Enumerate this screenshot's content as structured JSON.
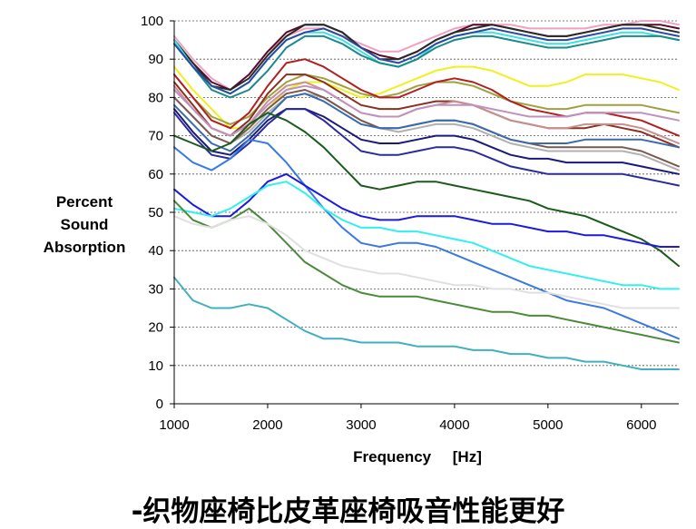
{
  "chart_data": {
    "type": "line",
    "ylabel": "Percent\nSound\nAbsorption",
    "xlabel": "Frequency",
    "xunit": "[Hz]",
    "xlim": [
      1000,
      6400
    ],
    "ylim": [
      0,
      100
    ],
    "xticks": [
      1000,
      2000,
      3000,
      4000,
      5000,
      6000
    ],
    "yticks": [
      0,
      10,
      20,
      30,
      40,
      50,
      60,
      70,
      80,
      90,
      100
    ],
    "grid": "horizontal dashed",
    "x": [
      1000,
      1200,
      1400,
      1600,
      1800,
      2000,
      2200,
      2400,
      2600,
      2800,
      3000,
      3200,
      3400,
      3600,
      3800,
      4000,
      4200,
      4400,
      4600,
      4800,
      5000,
      5200,
      5400,
      5600,
      5800,
      6000,
      6200,
      6400
    ],
    "series": [
      {
        "color": "#f0a0c0",
        "values": [
          96,
          90,
          85,
          82,
          86,
          92,
          96,
          98,
          98,
          96,
          94,
          92,
          92,
          94,
          96,
          98,
          99,
          99,
          99,
          98,
          98,
          98,
          98,
          99,
          99,
          100,
          100,
          99
        ]
      },
      {
        "color": "#5a0a2a",
        "values": [
          95,
          89,
          84,
          82,
          86,
          92,
          97,
          99,
          99,
          97,
          93,
          91,
          90,
          92,
          95,
          97,
          99,
          99,
          98,
          97,
          96,
          96,
          97,
          98,
          99,
          99,
          99,
          98
        ]
      },
      {
        "color": "#2a2a2a",
        "values": [
          95,
          89,
          83,
          82,
          85,
          91,
          96,
          99,
          99,
          97,
          93,
          90,
          90,
          92,
          95,
          97,
          98,
          99,
          98,
          97,
          96,
          96,
          97,
          98,
          99,
          99,
          98,
          97
        ]
      },
      {
        "color": "#40e0e0",
        "values": [
          95,
          88,
          83,
          81,
          84,
          90,
          95,
          97,
          97,
          95,
          92,
          89,
          88,
          90,
          94,
          96,
          97,
          97,
          96,
          95,
          94,
          94,
          95,
          96,
          97,
          97,
          96,
          95
        ]
      },
      {
        "color": "#1a8a8a",
        "values": [
          94,
          88,
          82,
          80,
          82,
          87,
          93,
          96,
          96,
          94,
          91,
          89,
          88,
          90,
          93,
          95,
          96,
          96,
          95,
          94,
          93,
          93,
          94,
          95,
          96,
          96,
          96,
          95
        ]
      },
      {
        "color": "#2a4aa0",
        "values": [
          94,
          88,
          83,
          81,
          84,
          90,
          95,
          97,
          98,
          96,
          93,
          90,
          89,
          91,
          94,
          96,
          97,
          98,
          97,
          96,
          95,
          95,
          96,
          97,
          98,
          98,
          97,
          96
        ]
      },
      {
        "color": "#f0f020",
        "values": [
          88,
          82,
          77,
          72,
          72,
          77,
          82,
          84,
          84,
          82,
          80,
          81,
          83,
          85,
          87,
          88,
          88,
          87,
          85,
          83,
          83,
          84,
          86,
          86,
          86,
          85,
          84,
          82
        ]
      },
      {
        "color": "#a0a040",
        "values": [
          86,
          80,
          75,
          73,
          75,
          80,
          84,
          86,
          85,
          83,
          81,
          80,
          81,
          83,
          84,
          84,
          83,
          81,
          79,
          78,
          77,
          77,
          78,
          78,
          78,
          78,
          77,
          76
        ]
      },
      {
        "color": "#b02020",
        "values": [
          86,
          80,
          74,
          72,
          76,
          83,
          89,
          90,
          88,
          85,
          82,
          80,
          80,
          82,
          84,
          85,
          84,
          82,
          79,
          77,
          76,
          75,
          76,
          76,
          75,
          74,
          72,
          70
        ]
      },
      {
        "color": "#8a3020",
        "values": [
          84,
          78,
          72,
          70,
          74,
          81,
          86,
          86,
          84,
          81,
          78,
          77,
          77,
          78,
          79,
          79,
          78,
          76,
          74,
          73,
          72,
          72,
          72,
          73,
          72,
          71,
          69,
          67
        ]
      },
      {
        "color": "#c89090",
        "values": [
          83,
          77,
          72,
          70,
          73,
          79,
          83,
          84,
          82,
          79,
          76,
          75,
          75,
          77,
          78,
          79,
          78,
          76,
          74,
          73,
          72,
          72,
          73,
          73,
          73,
          72,
          70,
          68
        ]
      },
      {
        "color": "#c090c0",
        "values": [
          82,
          77,
          72,
          70,
          73,
          78,
          82,
          83,
          82,
          79,
          76,
          75,
          75,
          77,
          78,
          78,
          78,
          77,
          76,
          75,
          75,
          75,
          76,
          76,
          76,
          76,
          75,
          74
        ]
      },
      {
        "color": "#b0b0b0",
        "values": [
          80,
          75,
          70,
          68,
          71,
          76,
          80,
          81,
          80,
          77,
          74,
          72,
          71,
          72,
          73,
          73,
          72,
          70,
          68,
          67,
          66,
          66,
          66,
          66,
          66,
          65,
          63,
          61
        ]
      },
      {
        "color": "#7a5a50",
        "values": [
          80,
          75,
          70,
          68,
          72,
          77,
          81,
          82,
          80,
          77,
          74,
          72,
          72,
          73,
          74,
          74,
          73,
          71,
          69,
          68,
          67,
          67,
          67,
          67,
          67,
          66,
          64,
          62
        ]
      },
      {
        "color": "#3a6ab0",
        "values": [
          78,
          73,
          68,
          66,
          70,
          75,
          80,
          81,
          79,
          76,
          73,
          72,
          72,
          73,
          74,
          74,
          73,
          71,
          69,
          68,
          68,
          68,
          69,
          69,
          69,
          69,
          68,
          67
        ]
      },
      {
        "color": "#1a1a7a",
        "values": [
          77,
          71,
          66,
          65,
          69,
          74,
          77,
          77,
          75,
          72,
          69,
          68,
          68,
          69,
          70,
          70,
          69,
          67,
          65,
          64,
          64,
          63,
          63,
          63,
          63,
          62,
          61,
          60
        ]
      },
      {
        "color": "#2a2aa0",
        "values": [
          76,
          70,
          65,
          64,
          68,
          73,
          77,
          77,
          74,
          70,
          66,
          65,
          65,
          66,
          67,
          67,
          66,
          64,
          62,
          61,
          60,
          60,
          60,
          60,
          60,
          59,
          58,
          57
        ]
      },
      {
        "color": "#1a5a1a",
        "values": [
          70,
          68,
          66,
          68,
          73,
          76,
          74,
          71,
          67,
          62,
          57,
          56,
          57,
          58,
          58,
          57,
          56,
          55,
          54,
          53,
          51,
          50,
          49,
          47,
          45,
          43,
          40,
          36
        ]
      },
      {
        "color": "#3a7ae0",
        "values": [
          67,
          63,
          61,
          64,
          69,
          68,
          63,
          57,
          51,
          46,
          42,
          41,
          42,
          42,
          41,
          39,
          37,
          35,
          33,
          31,
          29,
          27,
          26,
          25,
          23,
          21,
          19,
          17
        ]
      },
      {
        "color": "#1a1ae0",
        "values": [
          56,
          52,
          49,
          49,
          53,
          58,
          60,
          57,
          54,
          51,
          49,
          48,
          48,
          49,
          49,
          49,
          48,
          47,
          47,
          46,
          45,
          45,
          44,
          44,
          43,
          42,
          41,
          41
        ]
      },
      {
        "color": "#30f0f0",
        "values": [
          51,
          50,
          49,
          51,
          54,
          57,
          58,
          55,
          51,
          48,
          46,
          46,
          45,
          45,
          44,
          43,
          42,
          40,
          38,
          36,
          35,
          34,
          33,
          32,
          31,
          31,
          30,
          30
        ]
      },
      {
        "color": "#4a8a3a",
        "values": [
          53,
          48,
          46,
          48,
          51,
          47,
          42,
          37,
          34,
          31,
          29,
          28,
          28,
          28,
          27,
          26,
          25,
          24,
          24,
          23,
          23,
          22,
          21,
          20,
          19,
          18,
          17,
          16
        ]
      },
      {
        "color": "#e0e0e0",
        "values": [
          49,
          47,
          46,
          48,
          49,
          47,
          44,
          40,
          38,
          36,
          35,
          34,
          34,
          33,
          32,
          31,
          31,
          30,
          30,
          29,
          29,
          28,
          27,
          26,
          25,
          25,
          25,
          25
        ]
      },
      {
        "color": "#40b0c0",
        "values": [
          33,
          27,
          25,
          25,
          26,
          25,
          22,
          19,
          17,
          17,
          16,
          16,
          16,
          15,
          15,
          15,
          14,
          14,
          13,
          13,
          12,
          12,
          11,
          11,
          10,
          9,
          9,
          9
        ]
      }
    ]
  },
  "caption": "-织物座椅比皮革座椅吸音性能更好"
}
